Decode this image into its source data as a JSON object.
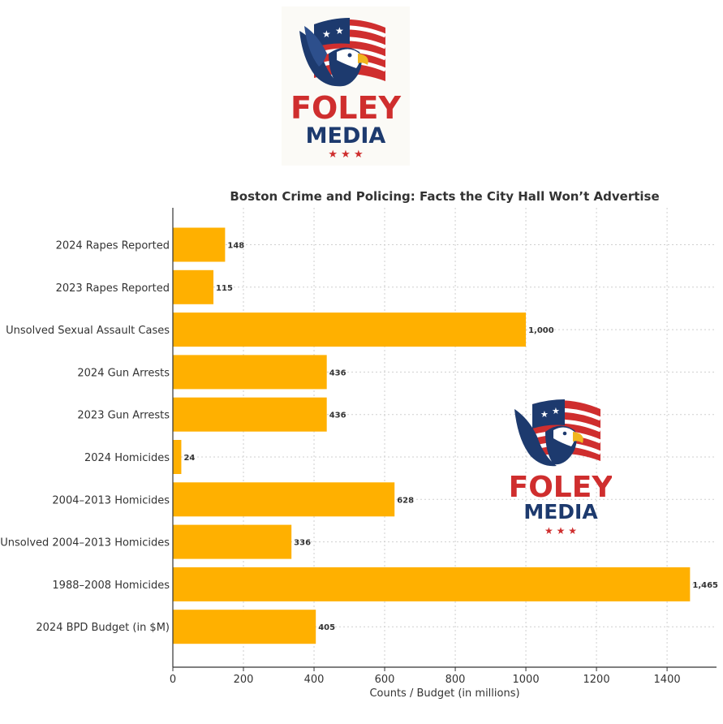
{
  "logo": {
    "brand_line1": "FOLEY",
    "brand_line2": "MEDIA",
    "stars": "★ ★ ★",
    "colors": {
      "red": "#cf2e2e",
      "navy": "#1d3a6e"
    }
  },
  "chart_data": {
    "type": "bar",
    "orientation": "horizontal",
    "title": "Boston Crime and Policing: Facts the City Hall Won’t Advertise",
    "xlabel": "Counts / Budget (in millions)",
    "ylabel": "",
    "categories": [
      "2024 Rapes Reported",
      "2023 Rapes Reported",
      "Unsolved Sexual Assault Cases",
      "2024 Gun Arrests",
      "2023 Gun Arrests",
      "2024 Homicides",
      "2004–2013 Homicides",
      "Unsolved 2004–2013 Homicides",
      "1988–2008 Homicides",
      "2024 BPD Budget (in $M)"
    ],
    "values": [
      148,
      115,
      1000,
      436,
      436,
      24,
      628,
      336,
      1465,
      405
    ],
    "value_labels": [
      "148",
      "115",
      "1,000",
      "436",
      "436",
      "24",
      "628",
      "336",
      "1,465",
      "405"
    ],
    "xlim": [
      0,
      1540
    ],
    "xticks": [
      0,
      200,
      400,
      600,
      800,
      1000,
      1200,
      1400
    ],
    "grid": true,
    "bar_color": "#ffb000"
  }
}
